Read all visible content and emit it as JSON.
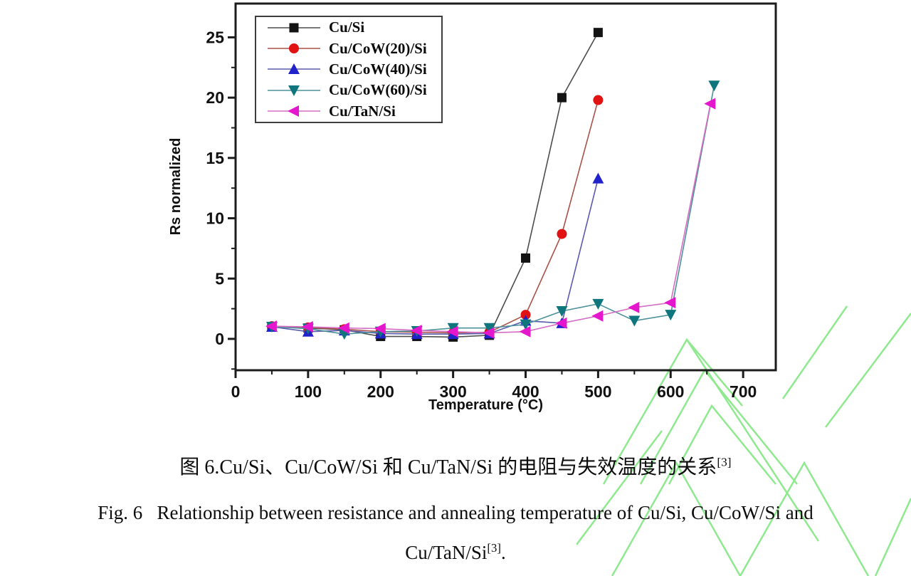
{
  "figure": {
    "background": "#ffffff"
  },
  "chart_data": {
    "type": "line",
    "title": "",
    "xlabel": "Temperature (°C)",
    "ylabel": "Rs normalized",
    "xlim": [
      0,
      745
    ],
    "ylim": [
      -2.6,
      27.8
    ],
    "x_major_ticks": [
      0,
      100,
      200,
      300,
      400,
      500,
      600,
      700
    ],
    "x_minor_ticks": [
      50,
      150,
      250,
      350,
      450,
      550,
      650
    ],
    "y_major_ticks": [
      0,
      5,
      10,
      15,
      20,
      25
    ],
    "y_minor_ticks": [
      -2.5,
      2.5,
      7.5,
      12.5,
      17.5,
      22.5
    ],
    "grid": false,
    "legend_position": "top-left",
    "series": [
      {
        "name": "Cu/Si",
        "marker": "square",
        "color": "#141414",
        "line_color": "#4d4d4d",
        "x": [
          50,
          100,
          150,
          200,
          250,
          300,
          350,
          400,
          450,
          500
        ],
        "y": [
          1.0,
          0.9,
          0.75,
          0.2,
          0.2,
          0.15,
          0.3,
          6.7,
          20.0,
          25.4
        ]
      },
      {
        "name": "Cu/CoW(20)/Si",
        "marker": "circle",
        "color": "#e01212",
        "line_color": "#aa5148",
        "x": [
          50,
          100,
          150,
          200,
          250,
          300,
          350,
          400,
          450,
          500
        ],
        "y": [
          1.05,
          0.95,
          0.8,
          0.6,
          0.55,
          0.5,
          0.55,
          2.0,
          8.7,
          19.8
        ]
      },
      {
        "name": "Cu/CoW(40)/Si",
        "marker": "triangle-up",
        "color": "#2222cb",
        "line_color": "#5a5aad",
        "x": [
          50,
          100,
          150,
          200,
          250,
          300,
          350,
          400,
          450,
          500
        ],
        "y": [
          1.0,
          0.6,
          0.7,
          0.45,
          0.4,
          0.4,
          0.45,
          1.5,
          1.3,
          13.3
        ]
      },
      {
        "name": "Cu/CoW(60)/Si",
        "marker": "triangle-down",
        "color": "#0e767c",
        "line_color": "#4d929b",
        "x": [
          50,
          100,
          150,
          200,
          250,
          300,
          350,
          400,
          450,
          500,
          550,
          600,
          660
        ],
        "y": [
          1.0,
          0.85,
          0.4,
          0.6,
          0.65,
          0.9,
          0.9,
          1.2,
          2.3,
          2.9,
          1.5,
          2.0,
          21.0
        ]
      },
      {
        "name": "Cu/TaN/Si",
        "marker": "triangle-left",
        "color": "#e517cd",
        "line_color": "#d66dc4",
        "x": [
          50,
          100,
          150,
          200,
          250,
          300,
          350,
          400,
          450,
          500,
          550,
          600,
          655
        ],
        "y": [
          1.05,
          1.0,
          0.9,
          0.85,
          0.7,
          0.6,
          0.5,
          0.6,
          1.3,
          1.9,
          2.6,
          3.0,
          19.5
        ]
      }
    ]
  },
  "captions": {
    "zh": {
      "text": "图 6.Cu/Si、Cu/CoW/Si 和 Cu/TaN/Si 的电阻与失效温度的关系",
      "sup": "[3]"
    },
    "en_line1": "Fig. 6   Relationship between resistance and annealing temperature of Cu/Si, Cu/CoW/Si and",
    "en_line2": {
      "text": "Cu/TaN/Si",
      "sup": "[3]",
      "suffix": "."
    }
  },
  "watermark": {
    "color": "#8fe98f"
  }
}
